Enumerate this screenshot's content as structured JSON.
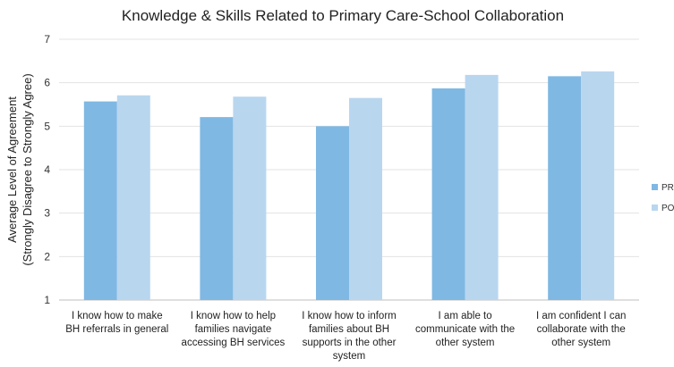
{
  "chart_data": {
    "type": "bar",
    "title": "Knowledge & Skills Related to Primary Care-School Collaboration",
    "ylabel_lines": [
      "Average Level of Agreement",
      "(Strongly Disagree to Strongly Agree)"
    ],
    "xlabel": "",
    "ylim": [
      1,
      7
    ],
    "yticks": [
      1,
      2,
      3,
      4,
      5,
      6,
      7
    ],
    "grid": true,
    "legend_position": "right",
    "categories": [
      [
        "I know how to make",
        "BH referrals in general"
      ],
      [
        "I know how to help",
        "families navigate",
        "accessing BH services"
      ],
      [
        "I know how to inform",
        "families about BH",
        "supports in the other",
        "system"
      ],
      [
        "I am able to",
        "communicate with the",
        "other system"
      ],
      [
        "I am confident I can",
        "collaborate with the",
        "other system"
      ]
    ],
    "series": [
      {
        "name": "PR",
        "color": "#7fb8e3",
        "values": [
          5.57,
          5.21,
          5.0,
          5.87,
          6.15
        ]
      },
      {
        "name": "PO",
        "color": "#b9d6ef",
        "values": [
          5.71,
          5.68,
          5.65,
          6.18,
          6.26
        ]
      }
    ]
  }
}
